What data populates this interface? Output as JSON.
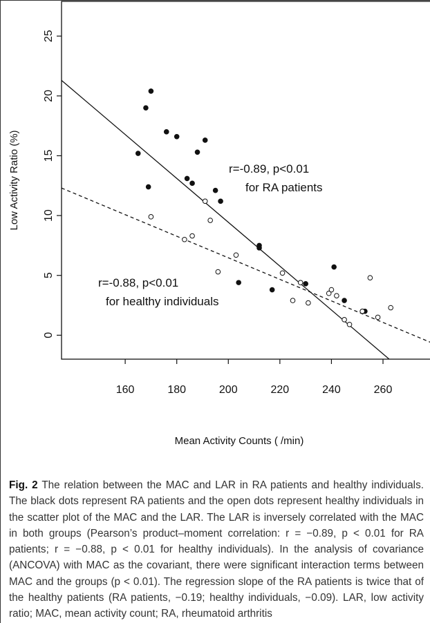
{
  "chart_data": {
    "type": "scatter",
    "x_label": "Mean Activity Counts ( /min)",
    "y_label": "Low Activity Ratio (%)",
    "xlim": [
      135.3,
      278.5
    ],
    "ylim": [
      -2,
      27.9
    ],
    "xticks": [
      160,
      180,
      200,
      220,
      240,
      260
    ],
    "yticks": [
      0,
      5,
      10,
      15,
      20,
      25
    ],
    "series": [
      {
        "marker": "filled",
        "color": "#111111",
        "x": [
          165,
          168,
          169,
          170,
          176,
          180,
          184,
          186,
          188,
          191,
          195,
          197,
          212,
          212,
          204,
          217,
          230,
          241,
          245,
          252,
          253
        ],
        "values": [
          15.2,
          19.0,
          12.4,
          20.4,
          17.0,
          16.6,
          13.1,
          12.7,
          15.3,
          16.3,
          12.1,
          11.2,
          7.5,
          7.3,
          4.4,
          3.8,
          4.3,
          5.7,
          2.9,
          2.0,
          2.0
        ]
      },
      {
        "marker": "open",
        "color": "#111111",
        "x": [
          170,
          183,
          186,
          191,
          193,
          196,
          203,
          221,
          225,
          228,
          231,
          239,
          240,
          242,
          245,
          247,
          252,
          255,
          258,
          263
        ],
        "values": [
          9.9,
          8.0,
          8.3,
          11.2,
          9.6,
          5.3,
          6.7,
          5.2,
          2.9,
          4.4,
          2.7,
          3.5,
          3.8,
          3.3,
          1.3,
          0.9,
          2.0,
          4.8,
          1.5,
          2.3
        ]
      }
    ],
    "lines": [
      {
        "style": "solid",
        "color": "#111111",
        "x": [
          135.3,
          262.4
        ],
        "values": [
          21.3,
          -2
        ]
      },
      {
        "style": "dashed",
        "color": "#111111",
        "x": [
          135.3,
          278.5
        ],
        "values": [
          12.3,
          -0.6
        ]
      }
    ],
    "annotations": [
      "r=-0.89, p<0.01",
      "for RA patients",
      "r=-0.88, p<0.01",
      "for healthy individuals"
    ]
  },
  "caption": {
    "label": "Fig. 2",
    "text": "The relation between the MAC and LAR in RA patients and healthy individuals. The black dots represent RA patients and the open dots represent healthy individuals in the scatter plot of the MAC and the LAR. The LAR is inversely correlated with the MAC in both groups (Pearson’s product–moment correlation: r = −0.89, p < 0.01 for RA patients; r = −0.88, p < 0.01 for healthy individuals). In the analysis of covariance (ANCOVA) with MAC as the covariant, there were significant interaction terms between MAC and the groups (p < 0.01). The regression slope of the RA patients is twice that of the healthy patients (RA patients, −0.19; healthy individuals, −0.09). LAR, low activity ratio; MAC, mean activity count; RA, rheumatoid arthritis"
  }
}
